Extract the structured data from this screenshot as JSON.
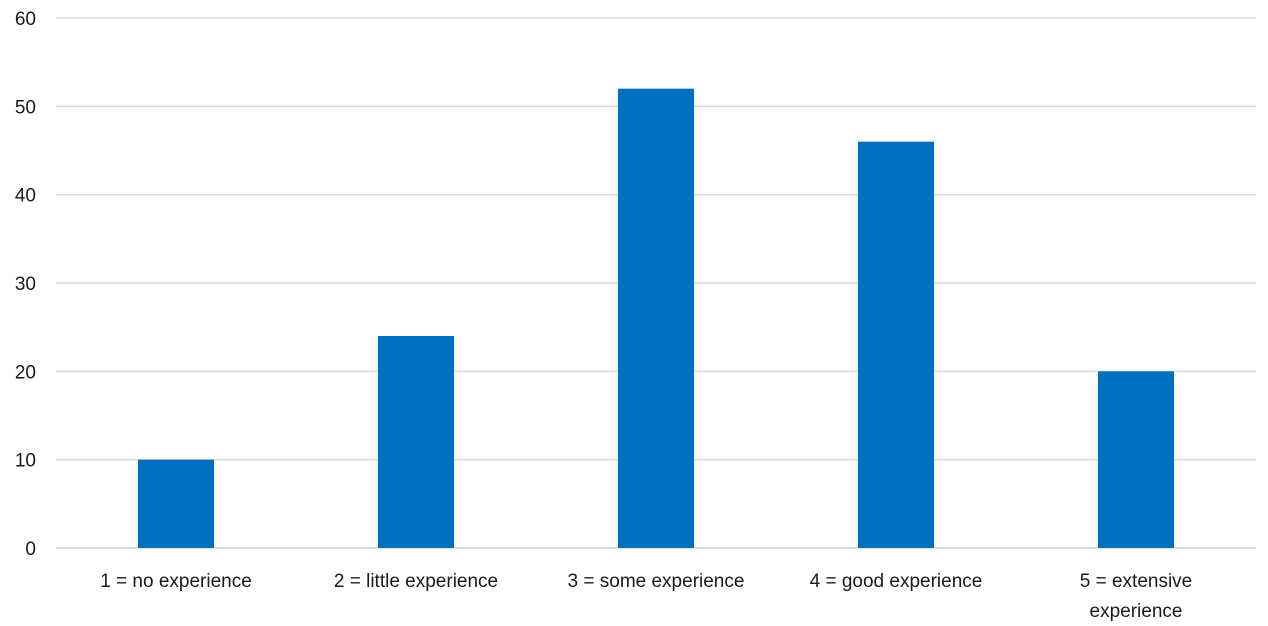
{
  "chart_data": {
    "type": "bar",
    "categories": [
      "1 = no experience",
      "2 = little experience",
      "3 = some experience",
      "4 = good experience",
      "5 = extensive experience"
    ],
    "category_label_lines": [
      [
        "1 = no experience"
      ],
      [
        "2 = little experience"
      ],
      [
        "3 = some experience"
      ],
      [
        "4 = good experience"
      ],
      [
        "5 = extensive",
        "experience"
      ]
    ],
    "values": [
      10,
      24,
      52,
      46,
      20
    ],
    "title": "",
    "xlabel": "",
    "ylabel": "",
    "ylim": [
      0,
      60
    ],
    "yticks": [
      0,
      10,
      20,
      30,
      40,
      50,
      60
    ],
    "grid": true,
    "legend": "none",
    "bar_color": "#0070C0",
    "grid_color": "#d9d9d9"
  }
}
